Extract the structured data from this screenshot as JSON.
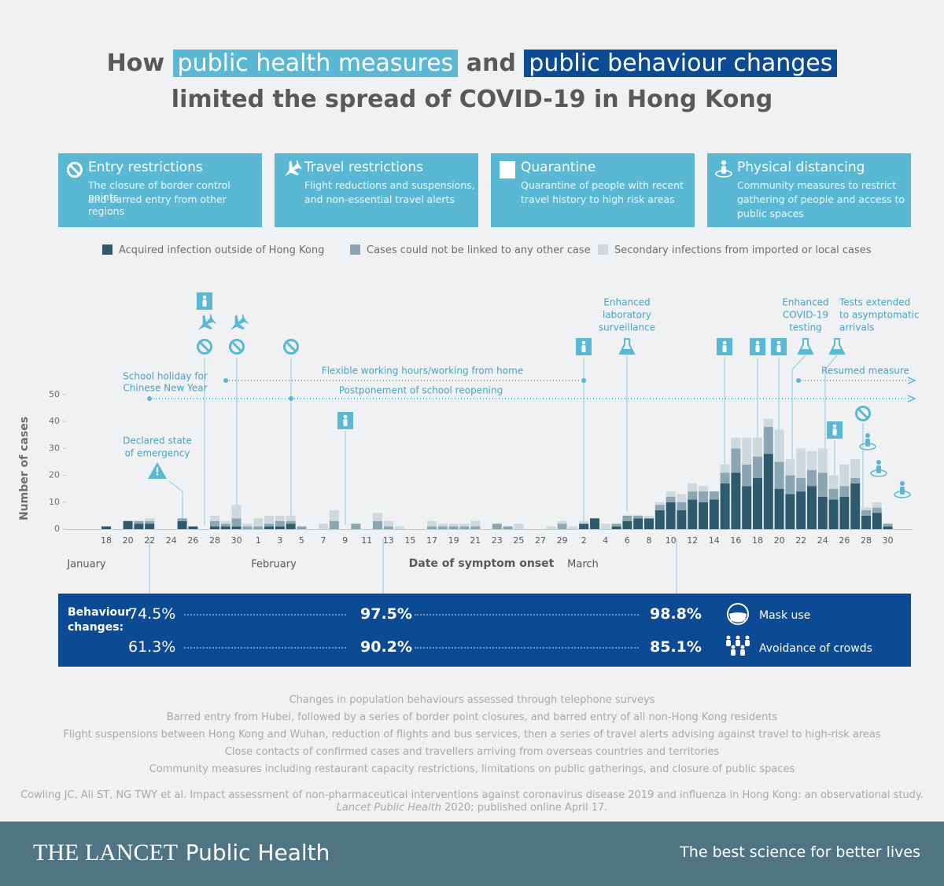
{
  "header": {
    "how": "How",
    "highlight1": "public health measures",
    "and": "and",
    "highlight2": "public behaviour changes",
    "line2": "limited the spread of COVID-19 in Hong Kong"
  },
  "measures": [
    {
      "title": "Entry restrictions",
      "lines": [
        "The closure of border control points",
        "and barred entry from other regions"
      ]
    },
    {
      "title": "Travel restrictions",
      "lines": [
        "Flight reductions and suspensions,",
        "and non-essential travel alerts"
      ]
    },
    {
      "title": "Quarantine",
      "lines": [
        "Quarantine of people with recent",
        "travel history to high risk areas"
      ]
    },
    {
      "title": "Physical distancing",
      "lines": [
        "Community measures to restrict",
        "gathering of people and access to",
        "public spaces"
      ]
    }
  ],
  "chart_data": {
    "type": "bar",
    "stacked": true,
    "y_label": "Number of cases",
    "x_label": "Date of symptom onset",
    "months": [
      "January",
      "February",
      "March"
    ],
    "categories": [
      "18",
      null,
      "20",
      null,
      "22",
      null,
      "24",
      null,
      "26",
      null,
      "28",
      null,
      "30",
      null,
      "1",
      null,
      "3",
      null,
      "5",
      null,
      "7",
      null,
      "9",
      null,
      "11",
      null,
      "13",
      null,
      "15",
      null,
      "17",
      null,
      "19",
      null,
      "21",
      null,
      "23",
      null,
      "25",
      null,
      "27",
      null,
      "29",
      null,
      "2",
      null,
      "4",
      null,
      "6",
      null,
      "8",
      null,
      "10",
      null,
      "12",
      null,
      "14",
      null,
      "16",
      null,
      "18",
      null,
      "20",
      null,
      "22",
      null,
      "24",
      null,
      "26",
      null,
      "28",
      null,
      "30"
    ],
    "series": [
      {
        "name": "Acquired infection outside of Hong Kong",
        "color": "#2e5a6e",
        "values": [
          1,
          0,
          3,
          2,
          2,
          0,
          0,
          3,
          1,
          0,
          1,
          1,
          1,
          0,
          0,
          1,
          1,
          2,
          0,
          0,
          0,
          0,
          0,
          0,
          0,
          0,
          0,
          0,
          0,
          0,
          0,
          0,
          0,
          0,
          0,
          0,
          0,
          0,
          0,
          0,
          0,
          0,
          0,
          0,
          2,
          4,
          0,
          1,
          3,
          4,
          4,
          7,
          10,
          7,
          11,
          10,
          11,
          17,
          21,
          16,
          19,
          28,
          15,
          13,
          14,
          16,
          12,
          11,
          12,
          17,
          5,
          6,
          1
        ]
      },
      {
        "name": "Cases could not be linked to any other case",
        "color": "#8ba6b3",
        "values": [
          0,
          0,
          0,
          1,
          1,
          0,
          0,
          1,
          0,
          0,
          2,
          1,
          3,
          1,
          1,
          1,
          2,
          1,
          1,
          0,
          0,
          3,
          0,
          2,
          0,
          3,
          1,
          0,
          0,
          0,
          1,
          1,
          1,
          1,
          1,
          0,
          2,
          1,
          0,
          0,
          0,
          0,
          2,
          0,
          0,
          0,
          0,
          1,
          2,
          1,
          0,
          2,
          2,
          3,
          3,
          4,
          3,
          4,
          9,
          8,
          8,
          10,
          10,
          7,
          5,
          6,
          9,
          4,
          4,
          2,
          2,
          2,
          1
        ]
      },
      {
        "name": "Secondary infections from imported or local cases",
        "color": "#cdd9df",
        "values": [
          0,
          0,
          0,
          0,
          1,
          0,
          0,
          0,
          0,
          0,
          2,
          1,
          5,
          1,
          3,
          3,
          2,
          2,
          0,
          0,
          2,
          4,
          0,
          0,
          0,
          3,
          2,
          1,
          0,
          0,
          2,
          1,
          1,
          1,
          2,
          0,
          0,
          0,
          2,
          0,
          0,
          1,
          1,
          1,
          1,
          0,
          2,
          0,
          0,
          0,
          1,
          1,
          2,
          3,
          3,
          2,
          0,
          3,
          4,
          10,
          7,
          3,
          12,
          6,
          11,
          7,
          9,
          5,
          8,
          7,
          1,
          2,
          0
        ]
      }
    ],
    "ylim": [
      0,
      50
    ],
    "yticks": [
      0,
      10,
      20,
      30,
      40,
      50
    ],
    "annotations": {
      "school_holiday": [
        "School holiday for",
        "Chinese New Year"
      ],
      "flexible": "Flexible working hours/working from home",
      "postponement": "Postponement of school reopening",
      "resumed": "Resumed measure",
      "emergency": [
        "Declared state",
        "of emergency"
      ],
      "lab": [
        "Enhanced",
        "laboratory",
        "surveillance"
      ],
      "testing": [
        "Enhanced",
        "COVID-19",
        "testing"
      ],
      "asymptomatic": [
        "Tests extended",
        "to asymptomatic",
        "arrivals"
      ]
    }
  },
  "behaviour": {
    "label": [
      "Behaviour",
      "changes:"
    ],
    "rows": [
      {
        "values": [
          "74.5%",
          "97.5%",
          "98.8%"
        ],
        "name": "Mask use"
      },
      {
        "values": [
          "61.3%",
          "90.2%",
          "85.1%"
        ],
        "name": "Avoidance of crowds"
      }
    ]
  },
  "notes": [
    "Changes in population behaviours assessed through telephone surveys",
    "Barred entry from Hubei, followed by a series of border point closures, and barred entry of all non-Hong Kong residents",
    "Flight suspensions between Hong Kong and Wuhan, reduction of flights and bus services, then a series of travel alerts advising against travel to high-risk areas",
    "Close contacts of confirmed cases and travellers arriving from overseas countries and territories",
    "Community measures including restaurant capacity restrictions, limitations on public gatherings, and closure of public spaces"
  ],
  "citation": {
    "line1": "Cowling JC, Ali ST, NG TWY et al. Impact assessment of non-pharmaceutical interventions against coronavirus disease 2019 and influenza in Hong Kong: an observational study.",
    "journal": "Lancet Public Health",
    "rest": " 2020; published online April 17."
  },
  "footer": {
    "brand": "THE LANCET",
    "journal": "Public Health",
    "tagline": "The best science for better lives"
  }
}
